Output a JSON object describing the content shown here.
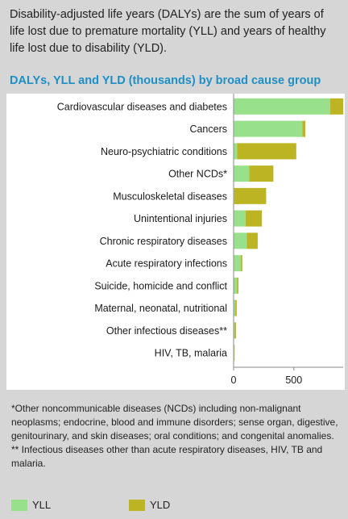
{
  "intro_text": "Disability-adjusted life years (DALYs) are the sum of years of life lost due to premature mortality (YLL) and years of healthy life lost due to disability (YLD).",
  "chart_data": {
    "type": "bar",
    "orientation": "horizontal",
    "stacked": true,
    "title": "DALYs, YLL and YLD (thousands) by broad cause group",
    "categories": [
      "Cardiovascular diseases and diabetes",
      "Cancers",
      "Neuro-psychiatric conditions",
      "Other NCDs*",
      "Musculoskeletal diseases",
      "Unintentional injuries",
      "Chronic respiratory diseases",
      "Acute respiratory infections",
      "Suicide, homicide and conflict",
      "Maternal, neonatal, nutritional",
      "Other infectious diseases**",
      "HIV, TB, malaria"
    ],
    "series": [
      {
        "name": "YLL",
        "color": "#99e08c",
        "values": [
          800,
          570,
          30,
          130,
          5,
          100,
          110,
          60,
          28,
          14,
          8,
          5
        ]
      },
      {
        "name": "YLD",
        "color": "#bcb422",
        "values": [
          110,
          25,
          490,
          200,
          265,
          135,
          90,
          12,
          12,
          12,
          12,
          3
        ]
      }
    ],
    "xticks": [
      0,
      500
    ],
    "xlim": [
      0,
      950
    ],
    "grid": false,
    "legend_position": "bottom-left"
  },
  "footnotes": [
    "*Other noncommunicable diseases (NCDs) including non-malignant neoplasms; endocrine, blood and immune disorders; sense organ, digestive, genitourinary, and skin diseases; oral conditions; and congenital anomalies.",
    " ** Infectious diseases other than acute respiratory diseases, HIV, TB and malaria."
  ],
  "legend": [
    {
      "label": "YLL",
      "color": "#99e08c"
    },
    {
      "label": "YLD",
      "color": "#bcb422"
    }
  ]
}
